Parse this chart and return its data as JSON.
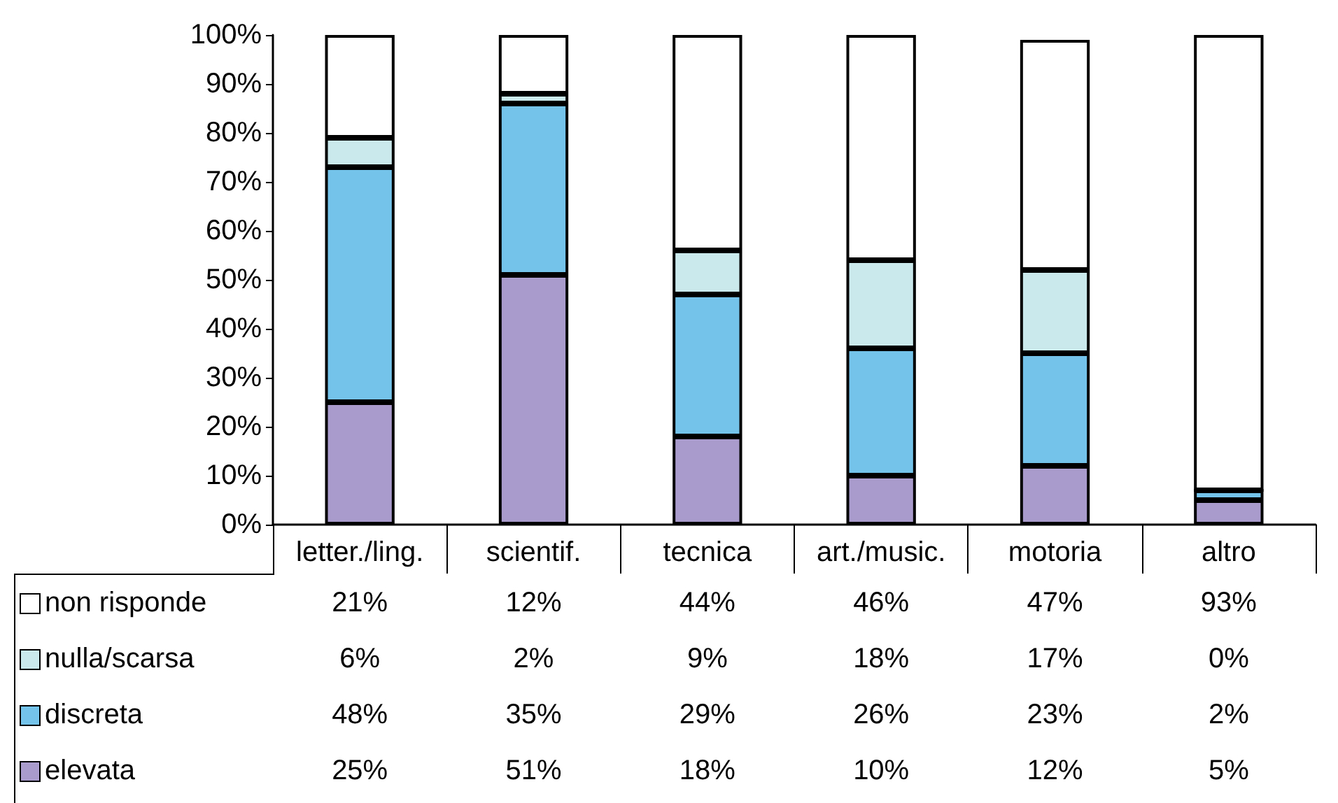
{
  "chart_data": {
    "type": "bar",
    "stacked": true,
    "categories": [
      "letter./ling.",
      "scientif.",
      "tecnica",
      "art./music.",
      "motoria",
      "altro"
    ],
    "series": [
      {
        "name": "elevata",
        "color": "#a99bcc",
        "values": [
          25,
          51,
          18,
          10,
          12,
          5
        ],
        "value_labels": [
          "25%",
          "51%",
          "18%",
          "10%",
          "12%",
          "5%"
        ]
      },
      {
        "name": "discreta",
        "color": "#74c3ea",
        "values": [
          48,
          35,
          29,
          26,
          23,
          2
        ],
        "value_labels": [
          "48%",
          "35%",
          "29%",
          "26%",
          "23%",
          "2%"
        ]
      },
      {
        "name": "nulla/scarsa",
        "color": "#c9e9ec",
        "values": [
          6,
          2,
          9,
          18,
          17,
          0
        ],
        "value_labels": [
          "6%",
          "2%",
          "9%",
          "18%",
          "17%",
          "0%"
        ]
      },
      {
        "name": "non risponde",
        "color": "#ffffff",
        "values": [
          21,
          12,
          44,
          46,
          47,
          93
        ],
        "value_labels": [
          "21%",
          "12%",
          "44%",
          "46%",
          "47%",
          "93%"
        ]
      }
    ],
    "ylim": [
      0,
      100
    ],
    "yticks": [
      {
        "value": 0,
        "label": "0%"
      },
      {
        "value": 10,
        "label": "10%"
      },
      {
        "value": 20,
        "label": "20%"
      },
      {
        "value": 30,
        "label": "30%"
      },
      {
        "value": 40,
        "label": "40%"
      },
      {
        "value": 50,
        "label": "50%"
      },
      {
        "value": 60,
        "label": "60%"
      },
      {
        "value": 70,
        "label": "70%"
      },
      {
        "value": 80,
        "label": "80%"
      },
      {
        "value": 90,
        "label": "90%"
      },
      {
        "value": 100,
        "label": "100%"
      }
    ],
    "grid": false,
    "legend": "bottom left"
  }
}
